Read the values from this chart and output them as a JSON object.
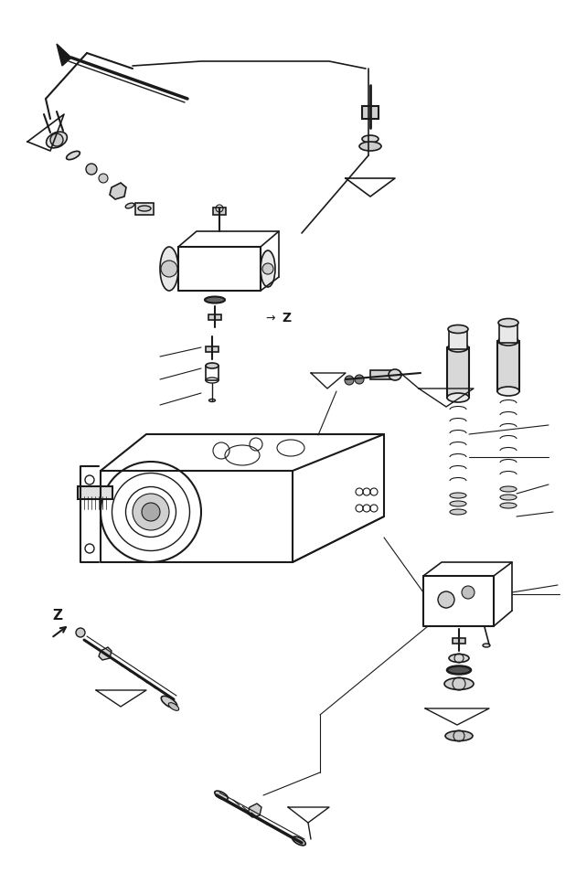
{
  "figsize": [
    6.3,
    9.55
  ],
  "dpi": 100,
  "bg_color": "#ffffff",
  "line_color": "#1a1a1a",
  "lw": 1.0
}
